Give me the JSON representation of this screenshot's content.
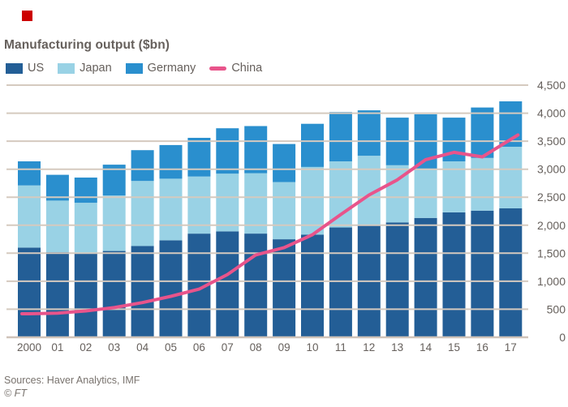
{
  "marker": {
    "color": "#CC0000"
  },
  "chart_data": {
    "type": "bar",
    "subtype": "stacked-bars-with-line-overlay",
    "title": "Manufacturing output ($bn)",
    "categories": [
      "2000",
      "01",
      "02",
      "03",
      "04",
      "05",
      "06",
      "07",
      "08",
      "09",
      "10",
      "11",
      "12",
      "13",
      "14",
      "15",
      "16",
      "17"
    ],
    "series": [
      {
        "name": "US",
        "kind": "bar",
        "color": "#235E96",
        "values": [
          1600,
          1520,
          1490,
          1540,
          1630,
          1730,
          1850,
          1890,
          1850,
          1750,
          1830,
          1960,
          2010,
          2050,
          2130,
          2230,
          2260,
          2300
        ]
      },
      {
        "name": "Japan",
        "kind": "bar",
        "color": "#99D2E5",
        "values": [
          1110,
          920,
          910,
          990,
          1160,
          1100,
          1020,
          1030,
          1080,
          1020,
          1210,
          1180,
          1230,
          1020,
          870,
          910,
          940,
          1100
        ]
      },
      {
        "name": "Germany",
        "kind": "bar",
        "color": "#2A8FCE",
        "values": [
          430,
          460,
          450,
          550,
          550,
          600,
          690,
          810,
          840,
          680,
          770,
          880,
          810,
          850,
          980,
          780,
          900,
          810
        ]
      },
      {
        "name": "China",
        "kind": "line",
        "color": "#E8548B",
        "values": [
          420,
          430,
          470,
          530,
          620,
          730,
          860,
          1120,
          1470,
          1600,
          1830,
          2190,
          2540,
          2810,
          3170,
          3300,
          3220,
          3530
        ]
      }
    ],
    "ylim": [
      0,
      4500
    ],
    "ytick_interval": 500,
    "ytick_labels": [
      "0",
      "500",
      "1,000",
      "1,500",
      "2,000",
      "2,500",
      "3,000",
      "3,500",
      "4,000",
      "4,500"
    ],
    "yaxis_side": "right",
    "grid": "horizontal",
    "gridlines_over_bars": true,
    "legend_position": "top-left",
    "colors": {
      "text": "#66605C",
      "muted_text": "#79736E",
      "gridline": "#D5CABF",
      "baseline": "#CFC3B9",
      "background": "#FFFFFF"
    }
  },
  "footer": {
    "sources": "Sources: Haver Analytics, IMF",
    "copyright": "© FT"
  }
}
